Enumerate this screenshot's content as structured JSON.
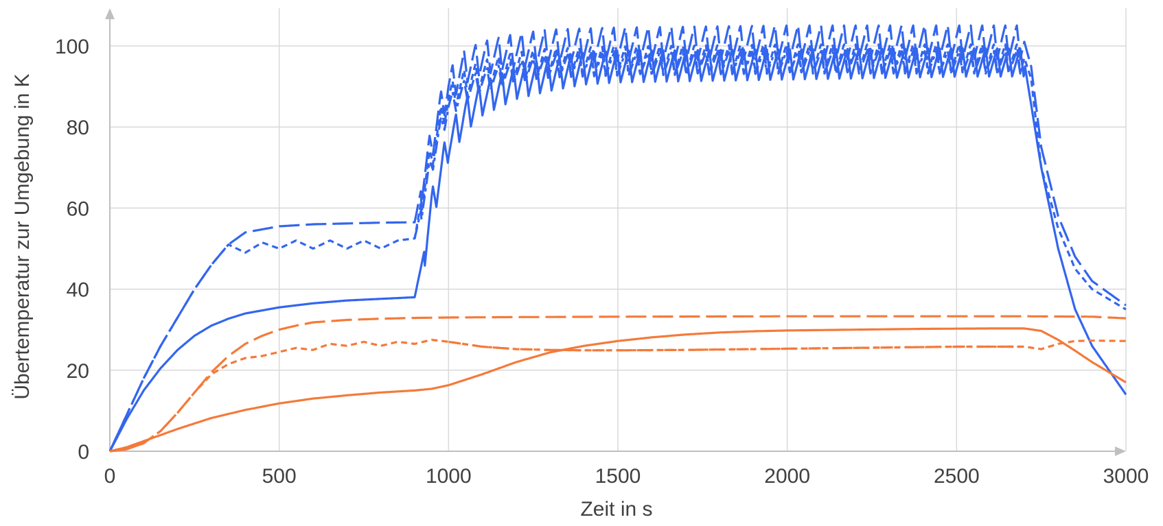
{
  "chart_data": {
    "type": "line",
    "xlabel": "Zeit in s",
    "ylabel": "Übertemperatur zur Umgebung in K",
    "xlim": [
      0,
      3000
    ],
    "ylim": [
      0,
      100
    ],
    "xticks": [
      0,
      500,
      1000,
      1500,
      2000,
      2500,
      3000
    ],
    "yticks": [
      0,
      20,
      40,
      60,
      80,
      100
    ],
    "grid": true,
    "legend": "none",
    "colors": {
      "blue": "#3366ee",
      "orange": "#f47a3a"
    },
    "series": [
      {
        "color": "blue",
        "dash": "solid",
        "x": [
          0,
          50,
          100,
          150,
          200,
          250,
          300,
          350,
          400,
          500,
          600,
          700,
          800,
          900,
          930,
          950,
          975,
          1000,
          1050,
          1100,
          1200,
          1300,
          1400,
          1500,
          2000,
          2500,
          2700,
          2750,
          2800,
          2850,
          2900,
          3000
        ],
        "y": [
          0,
          8,
          15,
          20.5,
          25,
          28.5,
          31,
          32.7,
          34,
          35.5,
          36.5,
          37.2,
          37.6,
          38,
          50,
          60,
          68,
          76,
          83,
          87,
          91,
          93,
          94.5,
          95,
          95.5,
          96,
          96,
          70,
          50,
          35,
          26,
          14
        ],
        "osc": {
          "from": 930,
          "to": 2700,
          "period": 34,
          "amp_start": 6,
          "amp_end": 5
        }
      },
      {
        "color": "blue",
        "dash": "longdash",
        "x": [
          0,
          50,
          100,
          150,
          200,
          250,
          300,
          350,
          400,
          500,
          600,
          700,
          800,
          900,
          920,
          950,
          975,
          1000,
          1050,
          1100,
          1200,
          1300,
          1500,
          2000,
          2500,
          2700,
          2720,
          2750,
          2800,
          2850,
          2900,
          3000
        ],
        "y": [
          0,
          9,
          18,
          26,
          33,
          40,
          46,
          51,
          54,
          55.5,
          56,
          56.2,
          56.4,
          56.5,
          65,
          76,
          84,
          90,
          95,
          97,
          99,
          100,
          100.5,
          101,
          101,
          101,
          95,
          75,
          58,
          48,
          42,
          36
        ],
        "osc": {
          "from": 920,
          "to": 2700,
          "period": 34,
          "amp_start": 6,
          "amp_end": 6
        }
      },
      {
        "color": "blue",
        "dash": "dotted",
        "x": [
          0,
          50,
          100,
          150,
          200,
          250,
          300,
          350,
          400,
          450,
          500,
          550,
          600,
          650,
          700,
          750,
          800,
          850,
          900,
          920,
          950,
          975,
          1000,
          1050,
          1100,
          1200,
          1300,
          1500,
          2000,
          2500,
          2700,
          2720,
          2750,
          2800,
          2850,
          2900,
          3000
        ],
        "y": [
          0,
          9,
          18,
          26,
          33,
          40,
          46,
          51,
          49,
          51.5,
          50,
          52,
          50,
          52,
          50,
          52,
          50,
          52,
          52.5,
          62,
          73,
          81,
          87,
          91,
          93,
          95,
          96,
          96.5,
          97,
          97,
          97,
          92,
          70,
          55,
          45,
          40,
          35
        ],
        "osc": {
          "from": 920,
          "to": 2700,
          "period": 34,
          "amp_start": 5,
          "amp_end": 5
        }
      },
      {
        "color": "blue",
        "dash": "dashdot",
        "x": [
          900,
          920,
          950,
          975,
          1000,
          1050,
          1100,
          1200,
          1300,
          1500,
          2000,
          2500,
          2700
        ],
        "y": [
          52.5,
          60,
          71,
          79,
          85,
          89,
          91.5,
          93.5,
          95,
          95.5,
          96,
          96,
          96
        ],
        "osc": {
          "from": 920,
          "to": 2700,
          "period": 34,
          "amp_start": 4,
          "amp_end": 4
        }
      },
      {
        "color": "orange",
        "dash": "solid",
        "x": [
          0,
          50,
          100,
          150,
          200,
          300,
          400,
          500,
          600,
          700,
          800,
          900,
          950,
          1000,
          1100,
          1200,
          1300,
          1400,
          1500,
          1600,
          1700,
          1800,
          1900,
          2000,
          2200,
          2400,
          2600,
          2700,
          2750,
          2800,
          2850,
          2900,
          3000
        ],
        "y": [
          0,
          1,
          2.5,
          4,
          5.5,
          8.2,
          10.2,
          11.8,
          13,
          13.8,
          14.5,
          15,
          15.4,
          16.3,
          19,
          22,
          24.4,
          26,
          27.2,
          28.1,
          28.8,
          29.3,
          29.6,
          29.8,
          30,
          30.2,
          30.3,
          30.3,
          29.7,
          27.5,
          24.8,
          22,
          17
        ]
      },
      {
        "color": "orange",
        "dash": "longdash",
        "x": [
          0,
          50,
          100,
          150,
          200,
          250,
          300,
          350,
          400,
          450,
          500,
          550,
          600,
          700,
          800,
          900,
          1000,
          1200,
          1500,
          2000,
          2500,
          2700,
          2900,
          3000
        ],
        "y": [
          0,
          0.5,
          2,
          5,
          9.5,
          14.5,
          19.5,
          23.5,
          26.5,
          28.5,
          30,
          31,
          31.8,
          32.4,
          32.7,
          32.9,
          33,
          33.1,
          33.2,
          33.3,
          33.3,
          33.3,
          33.2,
          32.8
        ]
      },
      {
        "color": "orange",
        "dash": "dotted",
        "x": [
          0,
          50,
          100,
          150,
          200,
          250,
          300,
          350,
          400,
          450,
          500,
          550,
          600,
          650,
          700,
          750,
          800,
          850,
          900,
          950,
          1000,
          1100,
          1200,
          1300,
          1400,
          1500,
          1700,
          2000,
          2300,
          2500,
          2700,
          2750,
          2800,
          2850,
          2900,
          3000
        ],
        "y": [
          0,
          0.5,
          2,
          5,
          9.5,
          14.5,
          19,
          21.5,
          23,
          23.5,
          24.5,
          25.5,
          25,
          26.5,
          26,
          27,
          26,
          27,
          26.5,
          27.5,
          27,
          25.8,
          25.2,
          25,
          24.9,
          24.9,
          25,
          25.3,
          25.6,
          25.8,
          25.8,
          25.2,
          26.5,
          27.2,
          27.3,
          27.2
        ]
      },
      {
        "color": "orange",
        "dash": "dashdot",
        "x": [
          1000,
          1100,
          1200,
          1300,
          1400,
          1500,
          1700,
          2000,
          2300,
          2500,
          2700
        ],
        "y": [
          27,
          25.8,
          25.2,
          25,
          24.9,
          24.9,
          25,
          25.3,
          25.6,
          25.8,
          25.8
        ]
      }
    ]
  }
}
